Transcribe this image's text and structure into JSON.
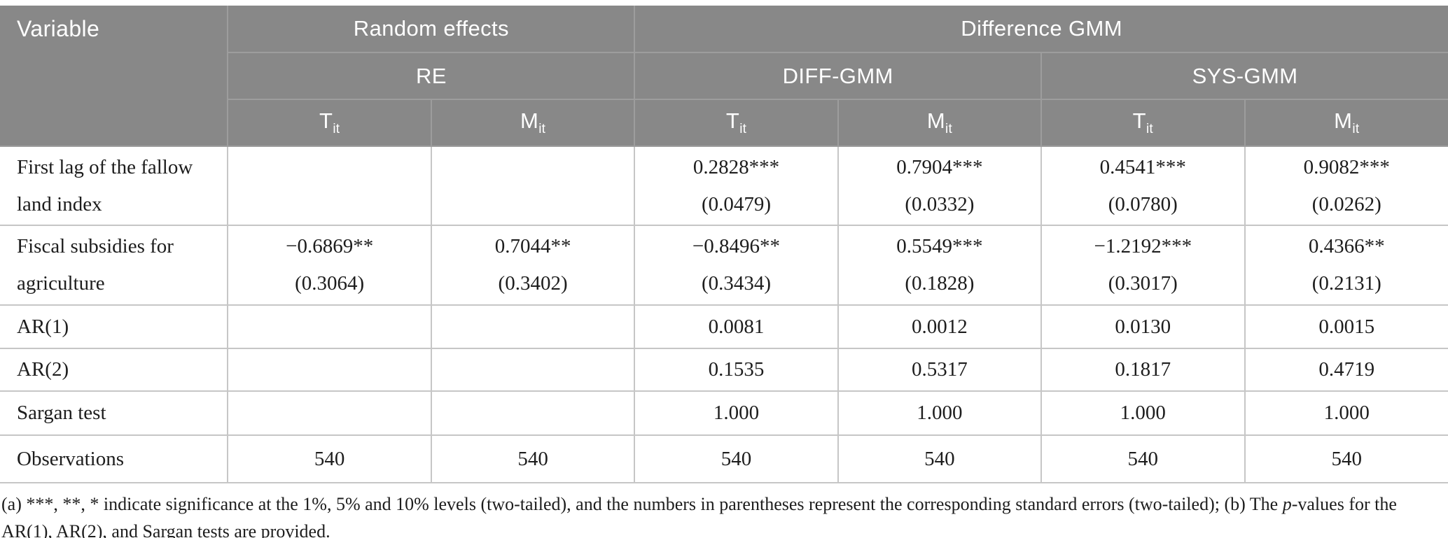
{
  "colors": {
    "header_background": "#888888",
    "header_border": "#9d9d9d",
    "header_text": "#ffffff",
    "body_border": "#c6c6c6",
    "body_text": "#1d1d1d",
    "page_background": "#ffffff"
  },
  "table": {
    "header": {
      "variable": "Variable",
      "groups": [
        {
          "label": "Random effects"
        },
        {
          "label": "Difference GMM"
        }
      ],
      "models": [
        {
          "label": "RE"
        },
        {
          "label": "DIFF-GMM"
        },
        {
          "label": "SYS-GMM"
        }
      ],
      "columns": [
        {
          "base": "T",
          "sub": "it"
        },
        {
          "base": "M",
          "sub": "it"
        },
        {
          "base": "T",
          "sub": "it"
        },
        {
          "base": "M",
          "sub": "it"
        },
        {
          "base": "T",
          "sub": "it"
        },
        {
          "base": "M",
          "sub": "it"
        }
      ]
    },
    "rows": [
      {
        "label1": "First lag of the fallow",
        "label2": "land index",
        "cells": [
          {
            "coef": "",
            "se": ""
          },
          {
            "coef": "",
            "se": ""
          },
          {
            "coef": "0.2828***",
            "se": "(0.0479)"
          },
          {
            "coef": "0.7904***",
            "se": "(0.0332)"
          },
          {
            "coef": "0.4541***",
            "se": "(0.0780)"
          },
          {
            "coef": "0.9082***",
            "se": "(0.0262)"
          }
        ]
      },
      {
        "label1": "Fiscal subsidies for",
        "label2": "agriculture",
        "cells": [
          {
            "coef": "−0.6869**",
            "se": "(0.3064)"
          },
          {
            "coef": "0.7044**",
            "se": "(0.3402)"
          },
          {
            "coef": "−0.8496**",
            "se": "(0.3434)"
          },
          {
            "coef": "0.5549***",
            "se": "(0.1828)"
          },
          {
            "coef": "−1.2192***",
            "se": "(0.3017)"
          },
          {
            "coef": "0.4366**",
            "se": "(0.2131)"
          }
        ]
      },
      {
        "label1": "AR(1)",
        "cells": [
          "",
          "",
          "0.0081",
          "0.0012",
          "0.0130",
          "0.0015"
        ]
      },
      {
        "label1": "AR(2)",
        "cells": [
          "",
          "",
          "0.1535",
          "0.5317",
          "0.1817",
          "0.4719"
        ]
      },
      {
        "label1": "Sargan test",
        "cells": [
          "",
          "",
          "1.000",
          "1.000",
          "1.000",
          "1.000"
        ]
      },
      {
        "label1": "Observations",
        "cells": [
          "540",
          "540",
          "540",
          "540",
          "540",
          "540"
        ]
      }
    ]
  },
  "footnote": {
    "part_a": "(a) ***, **, * indicate significance at the 1%, 5% and 10% levels (two-tailed), and the numbers in parentheses represent the corresponding standard errors (two-tailed); (b) The ",
    "p_italic": "p",
    "part_b": "-values for the AR(1), AR(2), and Sargan tests are provided."
  }
}
